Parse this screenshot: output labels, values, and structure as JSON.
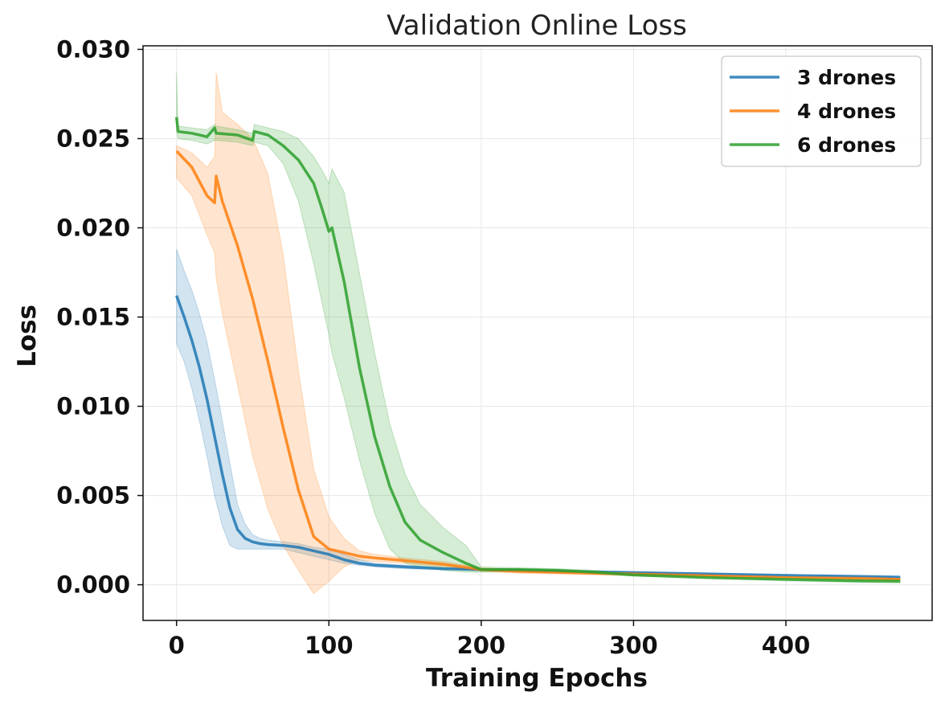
{
  "chart_data": {
    "type": "line",
    "title": "Validation Online Loss",
    "xlabel": "Training Epochs",
    "ylabel": "Loss",
    "xlim": [
      -22,
      496
    ],
    "ylim": [
      -0.002,
      0.0302
    ],
    "xticks": [
      0,
      100,
      200,
      300,
      400
    ],
    "xtick_labels": [
      "0",
      "100",
      "200",
      "300",
      "400"
    ],
    "yticks": [
      0.0,
      0.005,
      0.01,
      0.015,
      0.02,
      0.025,
      0.03
    ],
    "ytick_labels": [
      "0.000",
      "0.005",
      "0.010",
      "0.015",
      "0.020",
      "0.025",
      "0.030"
    ],
    "grid": true,
    "legend_position": "top-right",
    "series": [
      {
        "name": "3 drones",
        "color": "#1f77b4",
        "x": [
          0,
          5,
          10,
          15,
          20,
          25,
          30,
          35,
          40,
          45,
          50,
          55,
          60,
          70,
          80,
          90,
          100,
          110,
          120,
          130,
          140,
          150,
          175,
          200,
          250,
          300,
          350,
          400,
          450,
          475
        ],
        "y": [
          0.0162,
          0.015,
          0.0137,
          0.0122,
          0.0104,
          0.0083,
          0.0062,
          0.0043,
          0.0031,
          0.0026,
          0.0024,
          0.0023,
          0.00225,
          0.0022,
          0.0021,
          0.0019,
          0.0017,
          0.0014,
          0.0012,
          0.0011,
          0.00105,
          0.001,
          0.0009,
          0.00085,
          0.00075,
          0.00068,
          0.0006,
          0.00052,
          0.00046,
          0.00042
        ],
        "lower": [
          0.0135,
          0.0125,
          0.011,
          0.0092,
          0.0072,
          0.005,
          0.0033,
          0.0022,
          0.002,
          0.002,
          0.002,
          0.002,
          0.002,
          0.002,
          0.0018,
          0.0016,
          0.0014,
          0.0012,
          0.0011,
          0.001,
          0.00095,
          0.0009,
          0.00085,
          0.0008,
          0.0007,
          0.00062,
          0.00054,
          0.00046,
          0.0004,
          0.00036
        ],
        "upper": [
          0.0188,
          0.0176,
          0.0165,
          0.0152,
          0.0136,
          0.0115,
          0.0092,
          0.0068,
          0.0045,
          0.0034,
          0.0028,
          0.0026,
          0.0025,
          0.0024,
          0.0023,
          0.0021,
          0.002,
          0.0017,
          0.0014,
          0.0012,
          0.00115,
          0.0011,
          0.00095,
          0.0009,
          0.0008,
          0.00074,
          0.00066,
          0.00058,
          0.00052,
          0.00048
        ]
      },
      {
        "name": "4 drones",
        "color": "#ff7f0e",
        "x": [
          0,
          10,
          20,
          25,
          26,
          30,
          40,
          50,
          60,
          70,
          80,
          90,
          100,
          110,
          120,
          130,
          150,
          175,
          200,
          225,
          250,
          275,
          300,
          350,
          400,
          450,
          475
        ],
        "y": [
          0.0243,
          0.0234,
          0.0218,
          0.0214,
          0.0229,
          0.0215,
          0.019,
          0.016,
          0.0125,
          0.0088,
          0.0053,
          0.0027,
          0.002,
          0.0018,
          0.0016,
          0.0015,
          0.00135,
          0.00115,
          0.00085,
          0.00075,
          0.0007,
          0.00065,
          0.0006,
          0.0005,
          0.0004,
          0.00035,
          0.0003
        ],
        "lower": [
          0.0228,
          0.0218,
          0.0196,
          0.0186,
          0.0172,
          0.0152,
          0.0112,
          0.0072,
          0.0042,
          0.0022,
          0.0008,
          -0.0005,
          0.0002,
          0.001,
          0.0014,
          0.0013,
          0.0012,
          0.001,
          0.00075,
          0.00065,
          0.0006,
          0.00055,
          0.0005,
          0.00042,
          0.00034,
          0.00029,
          0.00025
        ],
        "upper": [
          0.0246,
          0.0242,
          0.0234,
          0.024,
          0.0287,
          0.0265,
          0.0258,
          0.025,
          0.023,
          0.0185,
          0.012,
          0.0065,
          0.0038,
          0.0026,
          0.0019,
          0.0017,
          0.0015,
          0.0013,
          0.00095,
          0.00085,
          0.0008,
          0.00075,
          0.0007,
          0.00058,
          0.00046,
          0.0004,
          0.00035
        ]
      },
      {
        "name": "6 drones",
        "color": "#2ca02c",
        "x": [
          0,
          1,
          10,
          20,
          25,
          26,
          40,
          50,
          51,
          60,
          70,
          80,
          90,
          95,
          100,
          102,
          110,
          120,
          130,
          140,
          150,
          160,
          175,
          190,
          200,
          225,
          250,
          275,
          300,
          350,
          400,
          450,
          475
        ],
        "y": [
          0.0262,
          0.0254,
          0.0253,
          0.0251,
          0.0256,
          0.0253,
          0.0252,
          0.0249,
          0.0254,
          0.0252,
          0.0246,
          0.0238,
          0.0225,
          0.0212,
          0.0198,
          0.02,
          0.017,
          0.0122,
          0.0083,
          0.0055,
          0.0035,
          0.0025,
          0.0018,
          0.0012,
          0.00085,
          0.00085,
          0.0008,
          0.0007,
          0.00055,
          0.0004,
          0.0003,
          0.00022,
          0.0002
        ],
        "lower": [
          0.0255,
          0.025,
          0.0249,
          0.0247,
          0.0249,
          0.0249,
          0.0248,
          0.0246,
          0.0248,
          0.0246,
          0.0236,
          0.0215,
          0.018,
          0.016,
          0.014,
          0.013,
          0.0105,
          0.007,
          0.004,
          0.002,
          0.0012,
          0.001,
          0.0008,
          0.0007,
          0.0007,
          0.00075,
          0.0007,
          0.00062,
          0.00048,
          0.00034,
          0.00022,
          0.00012,
          0.0001
        ],
        "upper": [
          0.0287,
          0.0257,
          0.0256,
          0.0255,
          0.0258,
          0.0257,
          0.0255,
          0.0253,
          0.0258,
          0.0256,
          0.0254,
          0.025,
          0.024,
          0.0233,
          0.0225,
          0.0233,
          0.022,
          0.0175,
          0.013,
          0.009,
          0.0062,
          0.0045,
          0.0032,
          0.0022,
          0.001,
          0.00095,
          0.0009,
          0.0008,
          0.00062,
          0.00046,
          0.00038,
          0.0003,
          0.00028
        ]
      }
    ]
  }
}
